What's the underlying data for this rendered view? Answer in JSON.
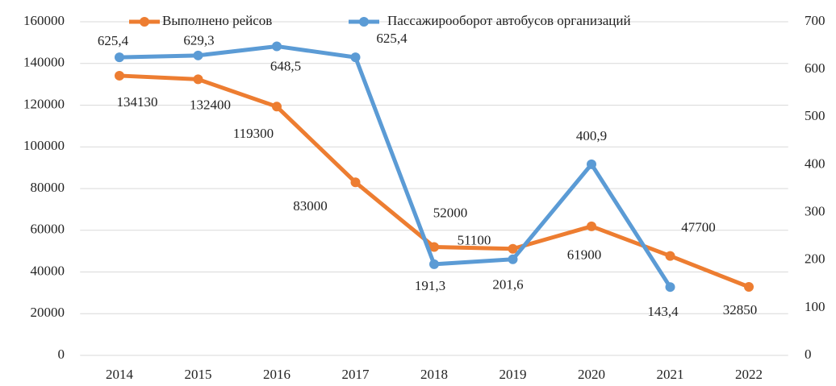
{
  "chart_data": {
    "type": "line",
    "categories": [
      "2014",
      "2015",
      "2016",
      "2017",
      "2018",
      "2019",
      "2020",
      "2021",
      "2022"
    ],
    "series": [
      {
        "name": "Выполнено рейсов",
        "color": "#ed7d31",
        "axis": "y",
        "values": [
          134130,
          132400,
          119300,
          83000,
          52000,
          51100,
          61900,
          47700,
          32850
        ]
      },
      {
        "name": "Пассажирооборот автобусов организаций",
        "color": "#5b9bd5",
        "axis": "y2",
        "values": [
          625.4,
          629.3,
          648.5,
          625.4,
          191.3,
          201.6,
          400.9,
          143.4,
          null
        ],
        "value_labels": [
          "625,4",
          "629,3",
          "648,5",
          "625,4",
          "191,3",
          "201,6",
          "400,9",
          "143,4",
          null
        ]
      }
    ],
    "ylim": [
      0,
      160000
    ],
    "yticks": [
      0,
      20000,
      40000,
      60000,
      80000,
      100000,
      120000,
      140000,
      160000
    ],
    "y2lim": [
      0,
      700
    ],
    "y2ticks": [
      0,
      100,
      200,
      300,
      400,
      500,
      600,
      700
    ],
    "grid": true,
    "legend": "top"
  }
}
